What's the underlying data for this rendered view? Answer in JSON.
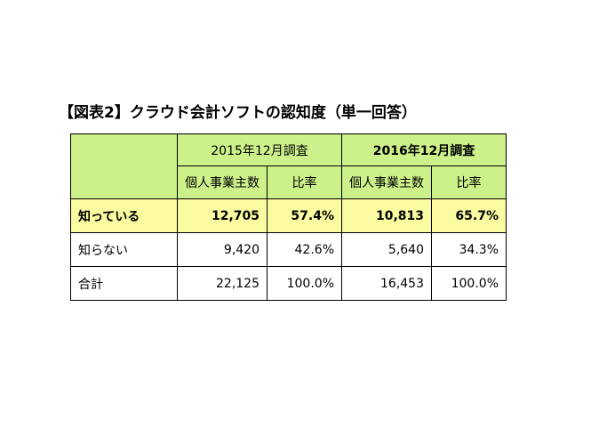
{
  "title": "【図表2】クラウド会計ソフトの認知度（単一回答）",
  "colors": {
    "header_bg": "#ccf08a",
    "highlight_bg": "#fafaa0",
    "border": "#000000"
  },
  "table": {
    "period_2015": "2015年12月調査",
    "period_2016": "2016年12月調査",
    "col_count": "個人事業主数",
    "col_ratio": "比率",
    "rows": [
      {
        "label": "知っている",
        "count_2015": "12,705",
        "ratio_2015": "57.4%",
        "count_2016": "10,813",
        "ratio_2016": "65.7%"
      },
      {
        "label": "知らない",
        "count_2015": "9,420",
        "ratio_2015": "42.6%",
        "count_2016": "5,640",
        "ratio_2016": "34.3%"
      },
      {
        "label": "合計",
        "count_2015": "22,125",
        "ratio_2015": "100.0%",
        "count_2016": "16,453",
        "ratio_2016": "100.0%"
      }
    ]
  }
}
